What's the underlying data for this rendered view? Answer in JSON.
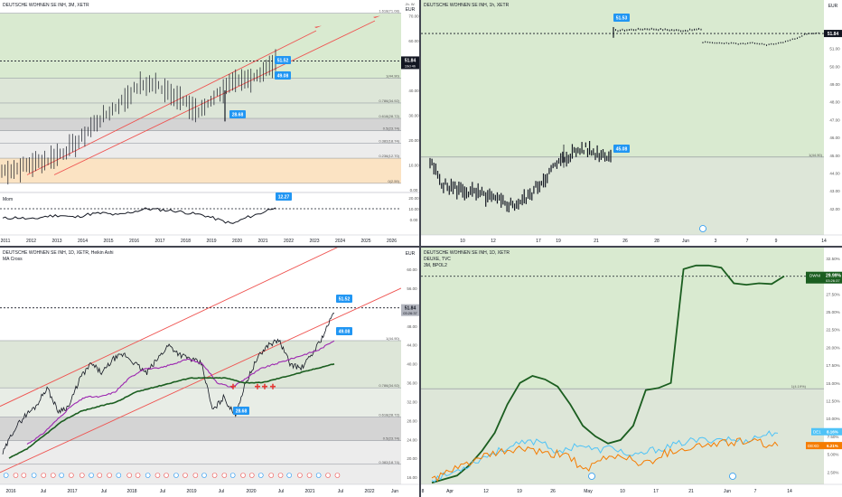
{
  "colors": {
    "green_zone": "#d9ead0",
    "green_zone_line": "#a7c99a",
    "orange_zone": "#fbe3c3",
    "gray_zone": "#d4d4d4",
    "channel": "#ef5350",
    "price": "#131722",
    "label_blue": "#2196f3",
    "momentum": "#131722",
    "ma_dark": "#1b5e20",
    "ma_magenta": "#9c27b0",
    "ma_red": "#e53935",
    "dwni": "#1b5e20",
    "dwni_fill": "#2e7d32",
    "light_blue": "#4fc3f7",
    "orange": "#f57c00"
  },
  "panels": {
    "top_left": {
      "title": "DEUTSCHE WOHNEN SE INH, 3M, XETR",
      "currency": "EUR",
      "currency_top": "Jh. W.",
      "price_tag": "51.84",
      "price_tag_sub": "19d 4h",
      "callout_high": "51.52",
      "callout_low": "49.08",
      "callout_dip": "28.68",
      "callout_mom": "12.27",
      "momentum_label": "Mom",
      "fib_labels": [
        "1.618(71.08)",
        "1(44.90)",
        "0.786(34.92)",
        "0.618(28.72)",
        "0.5(23.74)",
        "0.382(18.74)",
        "0.236(12.70)",
        "0(2.59)"
      ],
      "y_ticks": [
        "70.00",
        "60.00",
        "50.00",
        "40.00",
        "30.00",
        "20.00",
        "10.00",
        "0.00"
      ],
      "mom_ticks": [
        "20.00",
        "10.00",
        "0.00"
      ],
      "x_ticks": [
        "2011",
        "2012",
        "2013",
        "2014",
        "2015",
        "2016",
        "2017",
        "2018",
        "2019",
        "2020",
        "2021",
        "2022",
        "2023",
        "2024",
        "2025",
        "2026"
      ]
    },
    "top_right": {
      "title": "DEUTSCHE WOHNEN SE INH, 1h, XETR",
      "currency": "EUR",
      "price_tag": "51.84",
      "callout_high": "51.53",
      "callout_low": "45.08",
      "fib_label": "1(44.90)",
      "y_ticks": [
        "52.00",
        "51.00",
        "50.00",
        "49.00",
        "48.00",
        "47.00",
        "46.00",
        "45.00",
        "44.00",
        "43.00",
        "42.00"
      ],
      "x_ticks": [
        "10",
        "12",
        "17",
        "19",
        "21",
        "26",
        "28",
        "Jun",
        "3",
        "7",
        "9",
        "14"
      ]
    },
    "bottom_left": {
      "title": "DEUTSCHE WOHNEN SE INH, 1D, XETR, Heikin Ashi",
      "subtitle": "MA Cross",
      "currency": "EUR",
      "price_tag": "51.84",
      "price_tag_sub": "03:26:37",
      "callout_high": "51.52",
      "callout_low": "49.08",
      "callout_dip": "28.68",
      "fib_labels": [
        "1(44.90)",
        "0.786(34.92)",
        "0.618(28.72)",
        "0.5(23.74)",
        "0.382(18.74)"
      ],
      "y_ticks": [
        "60.00",
        "56.00",
        "52.00",
        "48.00",
        "44.00",
        "40.00",
        "36.00",
        "32.00",
        "28.00",
        "24.00",
        "20.00",
        "16.00"
      ],
      "x_ticks": [
        "2016",
        "Jul",
        "2017",
        "Jul",
        "2018",
        "Jul",
        "2019",
        "Jul",
        "2020",
        "Jul",
        "2021",
        "Jul",
        "2022",
        "Jun"
      ]
    },
    "bottom_right": {
      "title": "DEUTSCHE WOHNEN SE INH, 1D, XETR",
      "subtitle_1": "DEUXE, TVC",
      "subtitle_2": "3M, BPOL2",
      "tag_dwni": "DWNI",
      "tag_dwni_val": "29.99%",
      "tag_dwni_sub": "03:26:37",
      "tag_blue": "DE1",
      "tag_blue_val": "8.16%",
      "tag_orange": "DEXD",
      "tag_orange_val": "6.21%",
      "fib_label": "1(4.19%)",
      "y_ticks": [
        "32.50%",
        "30.00%",
        "27.50%",
        "25.00%",
        "22.50%",
        "20.00%",
        "17.50%",
        "15.00%",
        "12.50%",
        "10.00%",
        "7.50%",
        "5.00%",
        "2.50%"
      ],
      "x_ticks": [
        "8",
        "Apr",
        "12",
        "19",
        "26",
        "May",
        "10",
        "17",
        "21",
        "Jun",
        "7",
        "14"
      ]
    }
  }
}
